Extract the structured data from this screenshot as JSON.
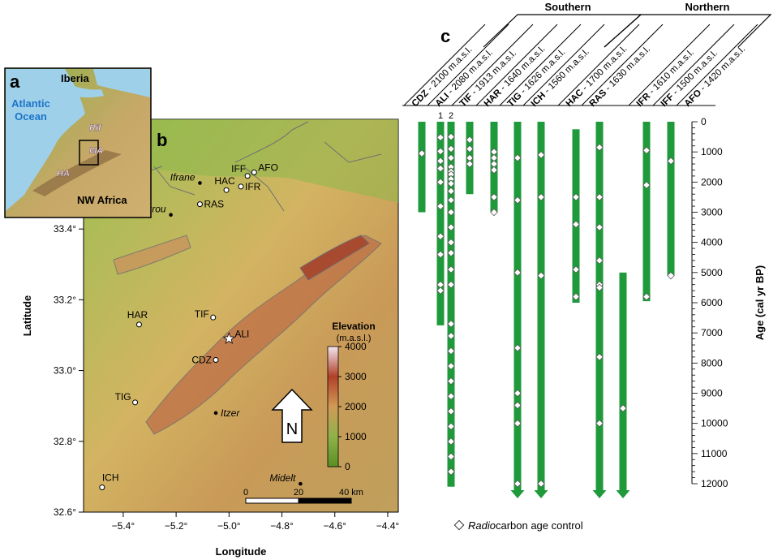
{
  "panel_a": {
    "letter": "a",
    "labels": {
      "iberia": "Iberia",
      "atlantic_line1": "Atlantic",
      "atlantic_line2": "Ocean",
      "rif": "Rif",
      "ma": "MA",
      "ha": "HA",
      "nw_africa": "NW Africa"
    }
  },
  "panel_b": {
    "letter": "b",
    "x_axis": {
      "title": "Longitude",
      "ticks": [
        -5.4,
        -5.2,
        -5.0,
        -4.8,
        -4.6,
        -4.4
      ],
      "tick_labels": [
        "−5.4°",
        "−5.2°",
        "−5.0°",
        "−4.8°",
        "−4.6°",
        "−4.4°"
      ]
    },
    "y_axis": {
      "title": "Latitude",
      "ticks": [
        32.6,
        32.8,
        33.0,
        33.2,
        33.4
      ],
      "tick_labels": [
        "32.6°",
        "32.8°",
        "33.0°",
        "33.2°",
        "33.4°"
      ]
    },
    "sites": [
      {
        "name": "IFF",
        "lon": -4.93,
        "lat": 33.55,
        "marker": "circle"
      },
      {
        "name": "AFO",
        "lon": -4.905,
        "lat": 33.56,
        "marker": "circle"
      },
      {
        "name": "HAC",
        "lon": -5.01,
        "lat": 33.51,
        "marker": "circle"
      },
      {
        "name": "IFR",
        "lon": -4.955,
        "lat": 33.52,
        "marker": "circle"
      },
      {
        "name": "RAS",
        "lon": -5.11,
        "lat": 33.47,
        "marker": "circle"
      },
      {
        "name": "TIF",
        "lon": -5.06,
        "lat": 33.15,
        "marker": "circle"
      },
      {
        "name": "ALI",
        "lon": -5.0,
        "lat": 33.09,
        "marker": "star"
      },
      {
        "name": "CDZ",
        "lon": -5.05,
        "lat": 33.03,
        "marker": "circle"
      },
      {
        "name": "HAR",
        "lon": -5.34,
        "lat": 33.13,
        "marker": "circle"
      },
      {
        "name": "TIG",
        "lon": -5.355,
        "lat": 32.91,
        "marker": "circle"
      },
      {
        "name": "ICH",
        "lon": -5.48,
        "lat": 32.67,
        "marker": "circle"
      }
    ],
    "towns": [
      {
        "name": "Ifrane",
        "lon": -5.11,
        "lat": 33.53
      },
      {
        "name": "Azrou",
        "lon": -5.22,
        "lat": 33.44
      },
      {
        "name": "Itzer",
        "lon": -5.05,
        "lat": 32.88
      },
      {
        "name": "Midelt",
        "lon": -4.73,
        "lat": 32.68
      }
    ],
    "legend": {
      "title": "Elevation",
      "unit": "(m.a.s.l.)",
      "ticks": [
        "4000",
        "3000",
        "2000",
        "1000",
        "0"
      ],
      "colors": [
        "#f4e6f0",
        "#b04028",
        "#d29a56",
        "#8fb24a",
        "#5a8f25"
      ]
    },
    "north_label": "N",
    "scale_bar": {
      "labels": [
        "0",
        "20",
        "40 km"
      ]
    }
  },
  "panel_c": {
    "letter": "c",
    "groups": [
      "Southern",
      "Northern"
    ],
    "y_axis": {
      "title": "Age (cal yr BP)",
      "min": 0,
      "max": 12000,
      "major_ticks": [
        0,
        1000,
        2000,
        3000,
        4000,
        5000,
        6000,
        7000,
        8000,
        9000,
        10000,
        11000,
        12000
      ],
      "minor_step": 200
    },
    "bar_color": "#1f9a3a",
    "cores": [
      {
        "code": "CDZ",
        "desc": "- 2100 m.a.s.l.",
        "start": 0,
        "end": 3000,
        "arrow": false,
        "dates": [
          1050
        ]
      },
      {
        "code": "ALI",
        "desc": "- 2080 m.a.s.l.",
        "sub": "1",
        "start": 0,
        "end": 6750,
        "arrow": false,
        "dates": [
          520,
          980,
          1300,
          1550,
          2000,
          2800,
          3800,
          4400,
          5400,
          5600
        ]
      },
      {
        "code": "",
        "desc": "",
        "sub": "2",
        "start": 0,
        "end": 12100,
        "arrow": false,
        "dates": [
          500,
          900,
          1200,
          1500,
          1650,
          1750,
          1900,
          2050,
          2300,
          2600,
          3000,
          3500,
          4000,
          4350,
          4900,
          5400,
          6700,
          7100,
          7600,
          8100,
          8600,
          9100,
          9600,
          10100,
          10600,
          11100,
          11600
        ]
      },
      {
        "code": "TIF",
        "desc": "- 1913 m.a.s.l.",
        "start": 0,
        "end": 2400,
        "arrow": false,
        "dates": [
          600,
          900,
          1200,
          1400
        ]
      },
      {
        "code": "HAR",
        "desc": "- 1640 m.a.s.l.",
        "start": 0,
        "end": 3000,
        "arrow": false,
        "dates": [
          1000,
          1200,
          1400,
          1600,
          2500,
          3000
        ]
      },
      {
        "code": "TIG",
        "desc": "- 1626 m.a.s.l.",
        "start": 0,
        "end": 12000,
        "arrow": true,
        "dates": [
          1200,
          2600,
          5000,
          7500,
          9000,
          9400,
          10000,
          12000
        ]
      },
      {
        "code": "ICH",
        "desc": "- 1560 m.a.s.l.",
        "start": 0,
        "end": 12000,
        "arrow": true,
        "dates": [
          1100,
          2500,
          5100,
          12000
        ]
      },
      {
        "code": "HAC",
        "desc": "- 1700 m.a.s.l.",
        "start": 250,
        "end": 6000,
        "arrow": false,
        "dates": [
          2500,
          3400,
          4900,
          5800
        ]
      },
      {
        "code": "RAS",
        "desc": "- 1630 m.a.s.l.",
        "start": 0,
        "end": 12000,
        "arrow": true,
        "dates": [
          850,
          2500,
          3500,
          4600,
          5400,
          5500,
          7800,
          10000
        ]
      },
      {
        "code": "",
        "desc": "",
        "start": 5000,
        "end": 12000,
        "arrow": true,
        "dates": [
          9500
        ]
      },
      {
        "code": "IFR",
        "desc": "- 1610 m.a.s.l.",
        "start": 0,
        "end": 5950,
        "arrow": false,
        "dates": [
          950,
          2100,
          5800
        ]
      },
      {
        "code": "IFF",
        "desc": "- 1500 m.a.s.l.",
        "start": 0,
        "end": 5100,
        "arrow": false,
        "dates": [
          1300,
          5100
        ]
      },
      {
        "code": "AFO",
        "desc": "- 1420 m.a.s.l.",
        "start": null,
        "end": null,
        "arrow": false,
        "dates": []
      }
    ],
    "legend_prefix": "Radio",
    "legend_suffix": "carbon age control"
  }
}
